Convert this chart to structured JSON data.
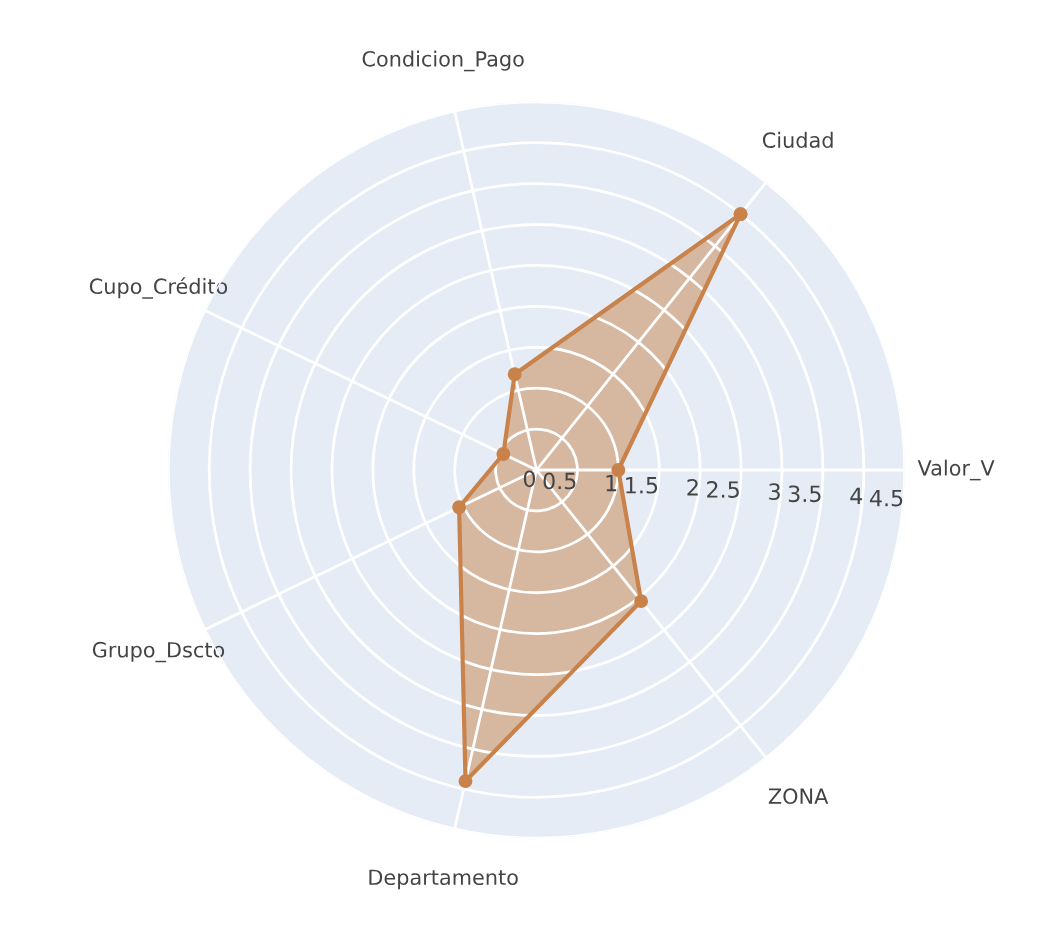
{
  "chart_data": {
    "type": "radar",
    "categories": [
      "Ciudad",
      "Valor_V",
      "ZONA",
      "Departamento",
      "Grupo_Dscto",
      "Cupo_Crédito",
      "Condicion_Pago"
    ],
    "series": [
      {
        "color": "#c8824a",
        "values": [
          4.0,
          1.0,
          2.05,
          3.9,
          1.05,
          0.45,
          1.2
        ]
      }
    ],
    "ylim": [
      0,
      4.5
    ],
    "yticks": [
      0,
      0.5,
      1,
      1.5,
      2,
      2.5,
      3,
      3.5,
      4,
      4.5
    ],
    "grid": true,
    "marker": "circle"
  }
}
